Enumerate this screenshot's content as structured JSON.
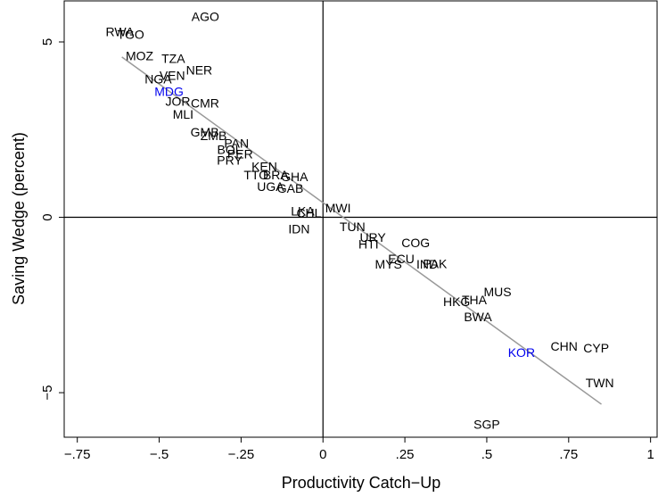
{
  "chart_data": {
    "type": "scatter",
    "xlabel": "Productivity Catch−Up",
    "ylabel": "Saving Wedge (percent)",
    "xlim": [
      -0.79,
      1.02
    ],
    "ylim": [
      -6.27,
      6.17
    ],
    "xticks": [
      {
        "value": -0.75,
        "label": "−.75"
      },
      {
        "value": -0.5,
        "label": "−.5"
      },
      {
        "value": -0.25,
        "label": "−.25"
      },
      0,
      {
        "value": 0.25,
        "label": ".25"
      },
      {
        "value": 0.5,
        "label": ".5"
      },
      {
        "value": 0.75,
        "label": ".75"
      },
      1
    ],
    "yticks": [
      {
        "value": -5,
        "label": "−5"
      },
      0,
      5
    ],
    "reference_lines": {
      "x": 0,
      "y": 0,
      "color": "#000000"
    },
    "points": {
      "labels": [
        "AGO",
        "RWA",
        "TGO",
        "MOZ",
        "TZA",
        "VEN",
        "NER",
        "NGA",
        "MDG",
        "JOR",
        "CMR",
        "MLI",
        "GMB",
        "ZMB",
        "PAN",
        "BOL",
        "PER",
        "PRY",
        "KEN",
        "TTO",
        "BRA",
        "UGA",
        "GHA",
        "GAB",
        "LKA",
        "MWI",
        "CHL",
        "IDN",
        "TUN",
        "URY",
        "HTI",
        "COG",
        "ECU",
        "MYS",
        "IND",
        "PAK",
        "MUS",
        "THA",
        "HKG",
        "BWA",
        "CHN",
        "CYP",
        "KOR",
        "TWN",
        "SGP"
      ],
      "x": [
        -0.359,
        -0.62,
        -0.587,
        -0.56,
        -0.457,
        -0.46,
        -0.378,
        -0.503,
        -0.47,
        -0.443,
        -0.36,
        -0.427,
        -0.361,
        -0.334,
        -0.264,
        -0.285,
        -0.253,
        -0.285,
        -0.179,
        -0.204,
        -0.144,
        -0.16,
        -0.087,
        -0.1,
        -0.062,
        0.046,
        -0.043,
        -0.073,
        0.09,
        0.152,
        0.139,
        0.283,
        0.239,
        0.2,
        0.318,
        0.342,
        0.533,
        0.462,
        0.408,
        0.473,
        0.736,
        0.834,
        0.606,
        0.845,
        0.5
      ],
      "y": [
        5.69,
        5.26,
        5.18,
        4.57,
        4.49,
        4.01,
        4.16,
        3.91,
        3.55,
        3.27,
        3.22,
        2.9,
        2.4,
        2.3,
        2.08,
        1.9,
        1.78,
        1.6,
        1.42,
        1.18,
        1.18,
        0.84,
        1.12,
        0.79,
        0.15,
        0.23,
        0.1,
        -0.36,
        -0.3,
        -0.61,
        -0.79,
        -0.76,
        -1.22,
        -1.37,
        -1.37,
        -1.35,
        -2.16,
        -2.39,
        -2.44,
        -2.87,
        -3.71,
        -3.76,
        -3.88,
        -4.75,
        -5.94
      ],
      "colors": [
        "#000000",
        "#000000",
        "#000000",
        "#000000",
        "#000000",
        "#000000",
        "#000000",
        "#000000",
        "#0000ee",
        "#000000",
        "#000000",
        "#000000",
        "#000000",
        "#000000",
        "#000000",
        "#000000",
        "#000000",
        "#000000",
        "#000000",
        "#000000",
        "#000000",
        "#000000",
        "#000000",
        "#000000",
        "#000000",
        "#000000",
        "#000000",
        "#000000",
        "#000000",
        "#000000",
        "#000000",
        "#000000",
        "#000000",
        "#000000",
        "#000000",
        "#000000",
        "#000000",
        "#000000",
        "#000000",
        "#000000",
        "#000000",
        "#000000",
        "#0000ee",
        "#000000",
        "#000000"
      ]
    },
    "fit_line": {
      "x": [
        -0.614,
        0.85
      ],
      "y": [
        4.57,
        -5.33
      ],
      "color": "#999999"
    }
  }
}
